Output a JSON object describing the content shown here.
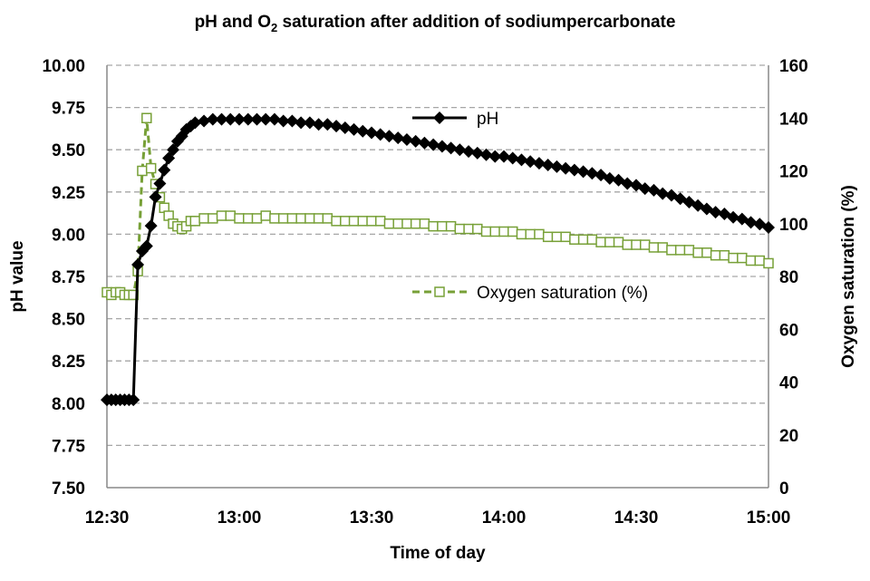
{
  "chart_data": {
    "type": "line",
    "title": {
      "pre": "pH and O",
      "sub": "2",
      "post": " saturation  after addition of sodiumpercarbonate"
    },
    "xlabel": "Time of day",
    "ylabel": "pH value",
    "y2label": "Oxygen saturation (%)",
    "xlim": [
      "12:30",
      "15:00"
    ],
    "ylim": [
      7.5,
      10.0
    ],
    "y2lim": [
      0,
      160
    ],
    "x_ticks": [
      "12:30",
      "13:00",
      "13:30",
      "14:00",
      "14:30",
      "15:00"
    ],
    "y_ticks": [
      "7.50",
      "7.75",
      "8.00",
      "8.25",
      "8.50",
      "8.75",
      "9.00",
      "9.25",
      "9.50",
      "9.75",
      "10.00"
    ],
    "y2_ticks": [
      "0",
      "20",
      "40",
      "60",
      "80",
      "100",
      "120",
      "140",
      "160"
    ],
    "grid": "horizontal dashed",
    "x": [
      "12:30",
      "12:31",
      "12:32",
      "12:33",
      "12:34",
      "12:35",
      "12:36",
      "12:37",
      "12:38",
      "12:39",
      "12:40",
      "12:41",
      "12:42",
      "12:43",
      "12:44",
      "12:45",
      "12:46",
      "12:47",
      "12:48",
      "12:49",
      "12:50",
      "12:52",
      "12:54",
      "12:56",
      "12:58",
      "13:00",
      "13:02",
      "13:04",
      "13:06",
      "13:08",
      "13:10",
      "13:12",
      "13:14",
      "13:16",
      "13:18",
      "13:20",
      "13:22",
      "13:24",
      "13:26",
      "13:28",
      "13:30",
      "13:32",
      "13:34",
      "13:36",
      "13:38",
      "13:40",
      "13:42",
      "13:44",
      "13:46",
      "13:48",
      "13:50",
      "13:52",
      "13:54",
      "13:56",
      "13:58",
      "14:00",
      "14:02",
      "14:04",
      "14:06",
      "14:08",
      "14:10",
      "14:12",
      "14:14",
      "14:16",
      "14:18",
      "14:20",
      "14:22",
      "14:24",
      "14:26",
      "14:28",
      "14:30",
      "14:32",
      "14:34",
      "14:36",
      "14:38",
      "14:40",
      "14:42",
      "14:44",
      "14:46",
      "14:48",
      "14:50",
      "14:52",
      "14:54",
      "14:56",
      "14:58",
      "15:00"
    ],
    "series": [
      {
        "name": "pH",
        "axis": "left",
        "color": "#000000",
        "marker": "filled-diamond",
        "line": "solid",
        "values": [
          8.02,
          8.02,
          8.02,
          8.02,
          8.02,
          8.02,
          8.02,
          8.82,
          8.9,
          8.93,
          9.05,
          9.22,
          9.3,
          9.38,
          9.45,
          9.5,
          9.55,
          9.58,
          9.62,
          9.64,
          9.66,
          9.67,
          9.68,
          9.68,
          9.68,
          9.68,
          9.68,
          9.68,
          9.68,
          9.68,
          9.67,
          9.67,
          9.66,
          9.66,
          9.65,
          9.65,
          9.64,
          9.63,
          9.62,
          9.61,
          9.6,
          9.59,
          9.58,
          9.57,
          9.56,
          9.55,
          9.54,
          9.53,
          9.52,
          9.51,
          9.5,
          9.49,
          9.48,
          9.47,
          9.46,
          9.46,
          9.45,
          9.44,
          9.43,
          9.42,
          9.41,
          9.4,
          9.39,
          9.38,
          9.37,
          9.36,
          9.35,
          9.33,
          9.32,
          9.3,
          9.29,
          9.27,
          9.26,
          9.24,
          9.23,
          9.21,
          9.19,
          9.17,
          9.15,
          9.13,
          9.12,
          9.1,
          9.09,
          9.07,
          9.06,
          9.04
        ]
      },
      {
        "name": "Oxygen saturation (%)",
        "axis": "right",
        "color": "#77a037",
        "marker": "open-square",
        "line": "dashed",
        "values": [
          74,
          73,
          74,
          74,
          73,
          73,
          73,
          82,
          120,
          140,
          121,
          115,
          110,
          106,
          103,
          100,
          99,
          98,
          99,
          101,
          101,
          102,
          102,
          103,
          103,
          102,
          102,
          102,
          103,
          102,
          102,
          102,
          102,
          102,
          102,
          102,
          101,
          101,
          101,
          101,
          101,
          101,
          100,
          100,
          100,
          100,
          100,
          99,
          99,
          99,
          98,
          98,
          98,
          97,
          97,
          97,
          97,
          96,
          96,
          96,
          95,
          95,
          95,
          94,
          94,
          94,
          93,
          93,
          93,
          92,
          92,
          92,
          91,
          91,
          90,
          90,
          90,
          89,
          89,
          88,
          88,
          87,
          87,
          86,
          86,
          85
        ]
      }
    ],
    "legend": "inside, next to each series"
  }
}
